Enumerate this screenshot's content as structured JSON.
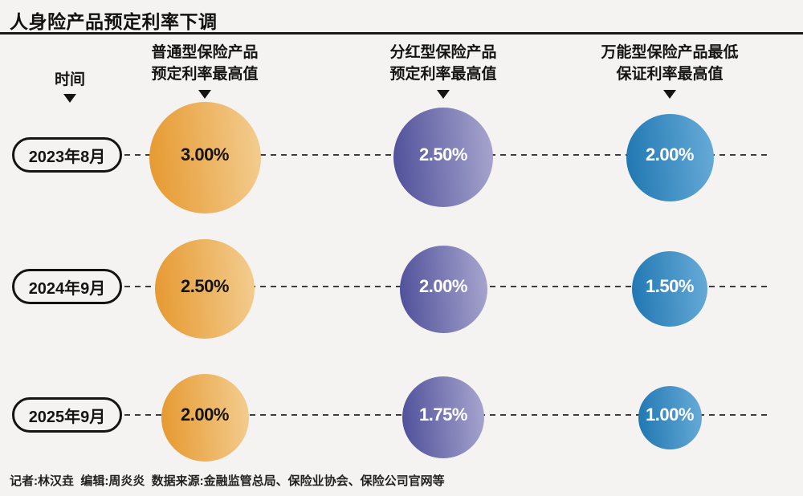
{
  "title": "人身险产品预定利率下调",
  "header": {
    "time_label": "时间",
    "columns": [
      {
        "line1": "普通型保险产品",
        "line2": "预定利率最高值"
      },
      {
        "line1": "分红型保险产品",
        "line2": "预定利率最高值"
      },
      {
        "line1": "万能型保险产品最低",
        "line2": "保证利率最高值"
      }
    ]
  },
  "footer": "记者:林汉垚  编辑:周炎炎  数据来源:金融监管总局、保险业协会、保险公司官网等",
  "colors": {
    "background": "#F4F3F1",
    "title_text": "#111111",
    "divider": "#1A1A1A",
    "dashed_line": "#3C3C3C",
    "pill_border": "#141414",
    "series": [
      {
        "gradient_start": "#E6982E",
        "gradient_end": "#F3CE92",
        "text": "#141414"
      },
      {
        "gradient_start": "#4D4E99",
        "gradient_end": "#A9A7CF",
        "text": "#FFFFFF"
      },
      {
        "gradient_start": "#1F76B1",
        "gradient_end": "#68ACD8",
        "text": "#FFFFFF"
      }
    ]
  },
  "chart_data": {
    "type": "scatter",
    "subtype": "bubble-matrix",
    "title": "人身险产品预定利率下调",
    "categories": [
      "2023年8月",
      "2024年9月",
      "2025年9月"
    ],
    "series": [
      {
        "name": "普通型保险产品预定利率最高值",
        "values": [
          3.0,
          2.5,
          2.0
        ]
      },
      {
        "name": "分红型保险产品预定利率最高值",
        "values": [
          2.5,
          2.0,
          1.75
        ]
      },
      {
        "name": "万能型保险产品最低保证利率最高值",
        "values": [
          2.0,
          1.5,
          1.0
        ]
      }
    ],
    "unit": "%",
    "value_format": "0.00%",
    "size_encoding": "bubble diameter proportional to value",
    "legend_position": "none",
    "grid": false,
    "row_connector": "horizontal dashed line per time row"
  }
}
